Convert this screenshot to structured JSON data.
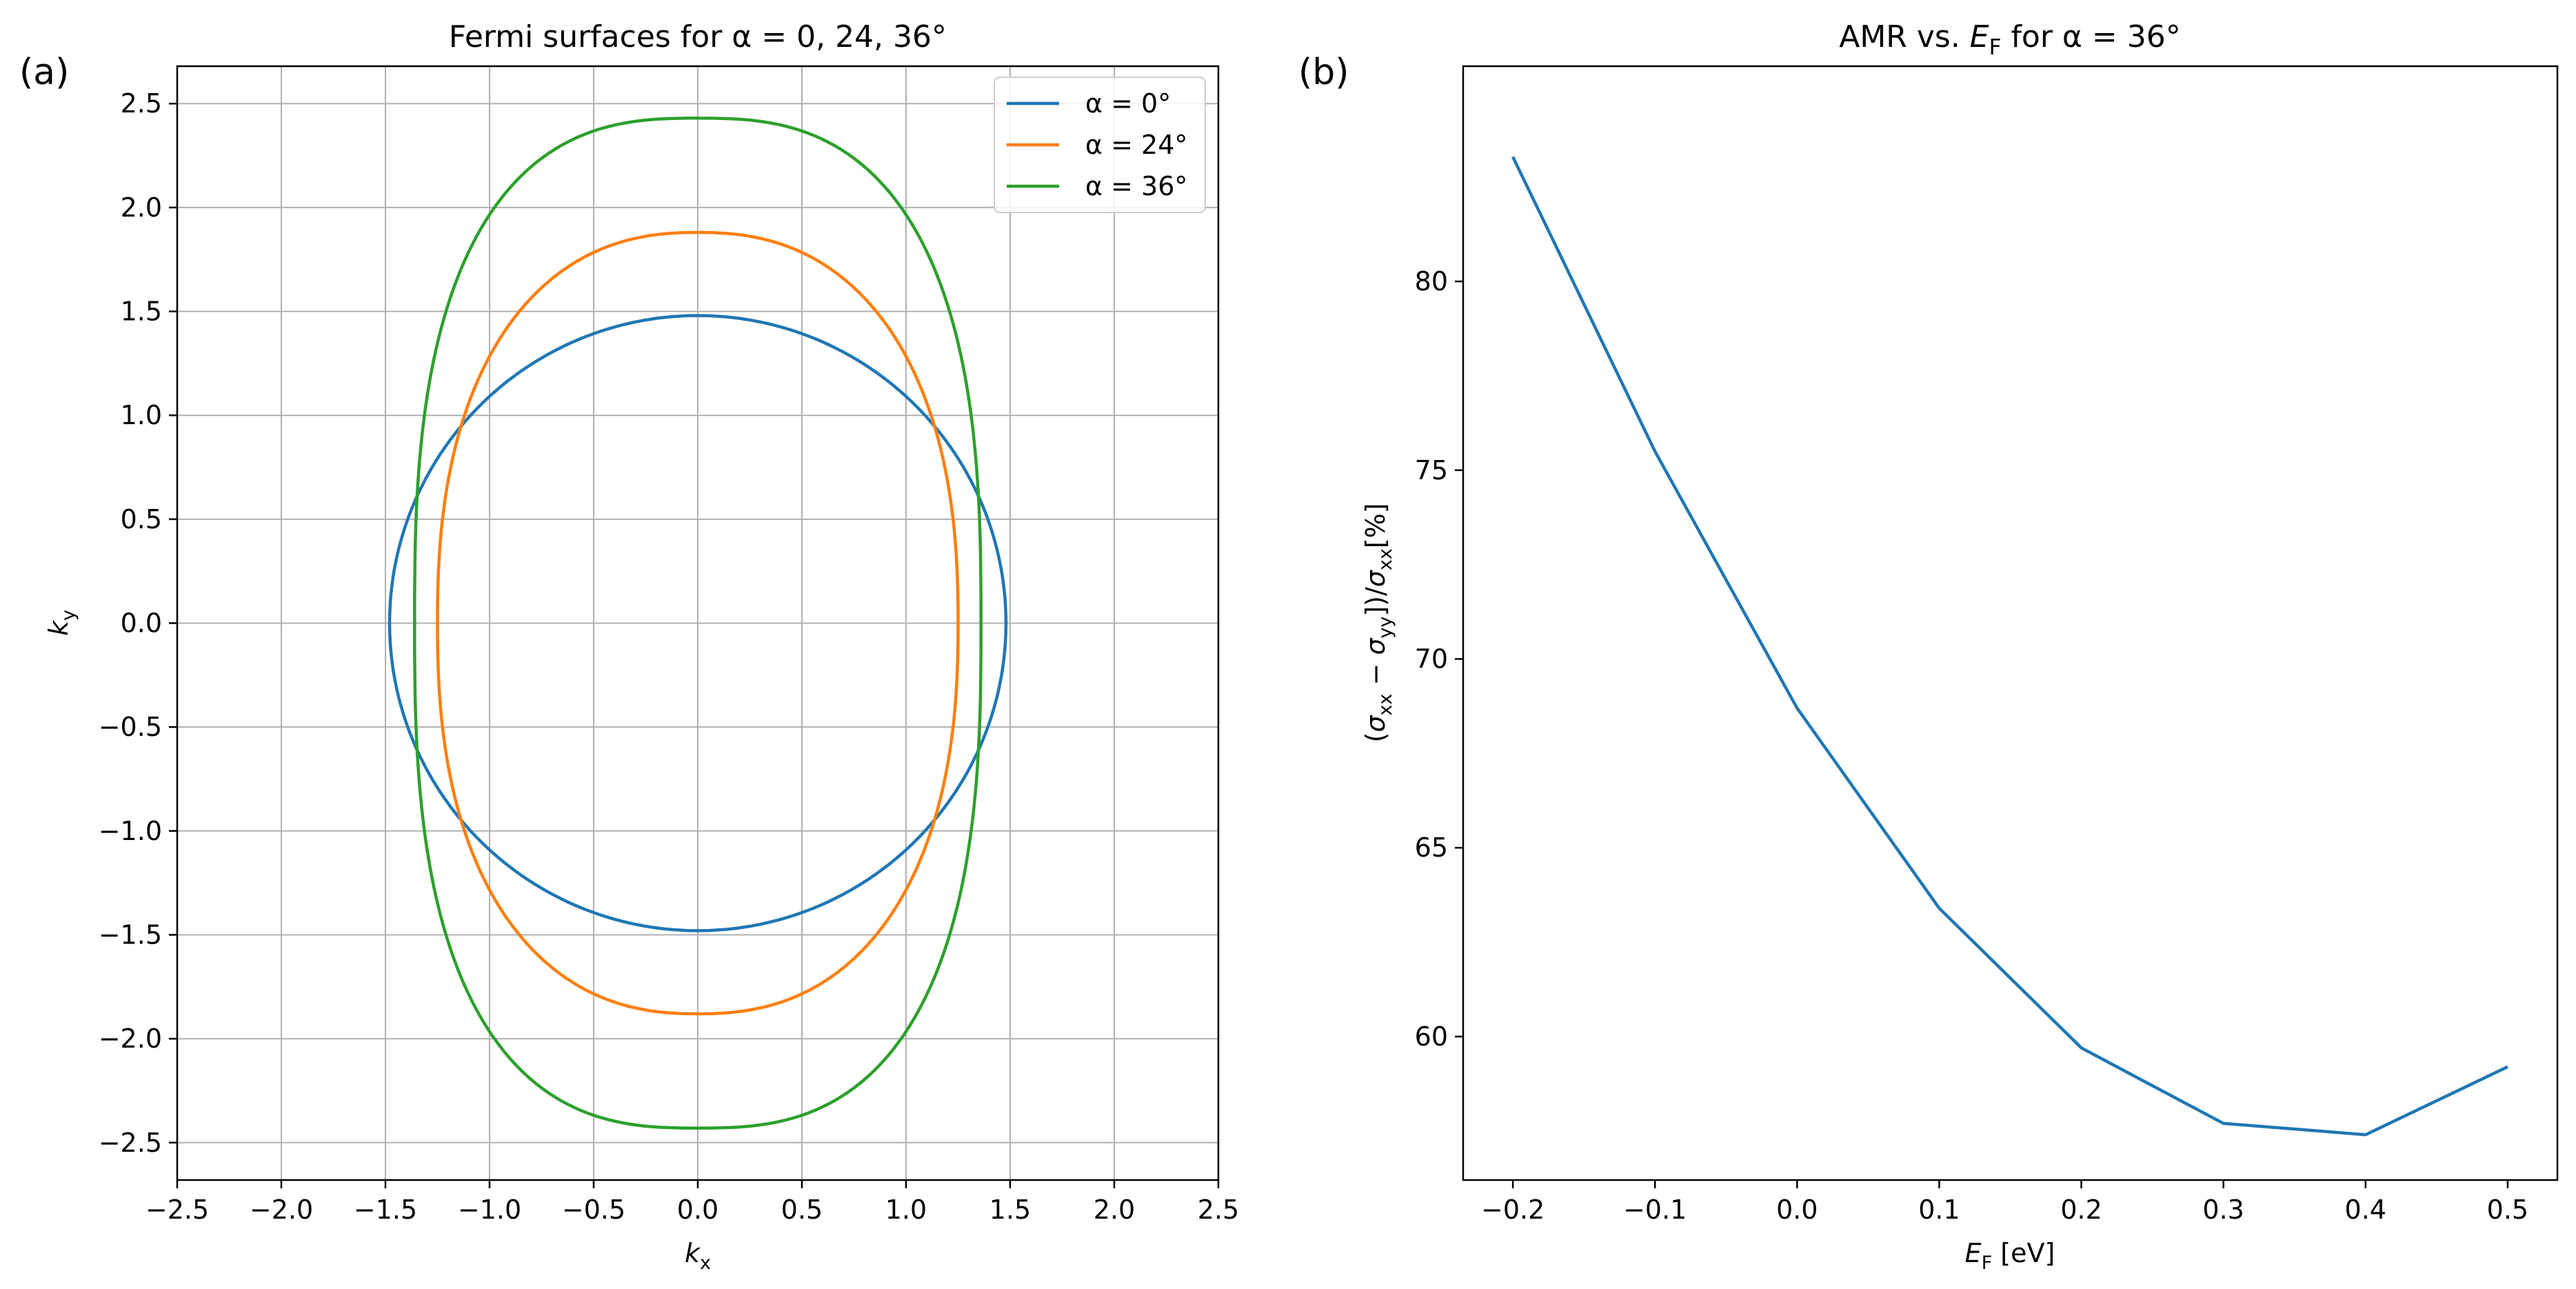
{
  "figure": {
    "panels": [
      {
        "label": "(a)"
      },
      {
        "label": "(b)"
      }
    ]
  },
  "colors": {
    "blue": "#1f77b4",
    "orange": "#ff7f0e",
    "green": "#2ca02c",
    "grid": "#b0b0b0"
  },
  "chart_data": [
    {
      "type": "line",
      "panel": "(a)",
      "title": "Fermi surfaces for α = 0, 24, 36°",
      "xlabel": "k_x",
      "ylabel": "k_y",
      "xlim": [
        -2.5,
        2.5
      ],
      "ylim": [
        -2.68,
        2.68
      ],
      "xticks": [
        "−2.5",
        "−2.0",
        "−1.5",
        "−1.0",
        "−0.5",
        "0.0",
        "0.5",
        "1.0",
        "1.5",
        "2.0",
        "2.5"
      ],
      "xtick_values": [
        -2.5,
        -2.0,
        -1.5,
        -1.0,
        -0.5,
        0.0,
        0.5,
        1.0,
        1.5,
        2.0,
        2.5
      ],
      "yticks": [
        "−2.5",
        "−2.0",
        "−1.5",
        "−1.0",
        "−0.5",
        "0.0",
        "0.5",
        "1.0",
        "1.5",
        "2.0",
        "2.5"
      ],
      "ytick_values": [
        -2.5,
        -2.0,
        -1.5,
        -1.0,
        -0.5,
        0.0,
        0.5,
        1.0,
        1.5,
        2.0,
        2.5
      ],
      "grid": true,
      "legend": "top-right",
      "series": [
        {
          "name": "α = 0°",
          "color": "#1f77b4",
          "kx_max": 1.48,
          "ky_max": 1.48,
          "shape_exponent": 2.0
        },
        {
          "name": "α = 24°",
          "color": "#ff7f0e",
          "kx_max": 1.25,
          "ky_max": 1.88,
          "shape_exponent": 2.35
        },
        {
          "name": "α = 36°",
          "color": "#2ca02c",
          "kx_max": 1.36,
          "ky_max": 2.43,
          "shape_exponent": 2.7
        }
      ]
    },
    {
      "type": "line",
      "panel": "(b)",
      "title": "AMR vs. E_F for α = 36°",
      "xlabel": "E_F [eV]",
      "ylabel": "(σ_xx − σ_yy])/σ_xx[%]",
      "xlim": [
        -0.235,
        0.535
      ],
      "ylim": [
        56.2,
        85.7
      ],
      "xticks": [
        "−0.2",
        "−0.1",
        "0.0",
        "0.1",
        "0.2",
        "0.3",
        "0.4",
        "0.5"
      ],
      "xtick_values": [
        -0.2,
        -0.1,
        0.0,
        0.1,
        0.2,
        0.3,
        0.4,
        0.5
      ],
      "yticks": [
        "60",
        "65",
        "70",
        "75",
        "80"
      ],
      "ytick_values": [
        60,
        65,
        70,
        75,
        80
      ],
      "grid": false,
      "series": [
        {
          "color": "#1f77b4",
          "x": [
            -0.2,
            -0.1,
            0.0,
            0.1,
            0.2,
            0.3,
            0.4,
            0.5
          ],
          "y": [
            83.3,
            75.5,
            68.7,
            63.4,
            59.7,
            57.7,
            57.4,
            59.2
          ]
        }
      ]
    }
  ]
}
